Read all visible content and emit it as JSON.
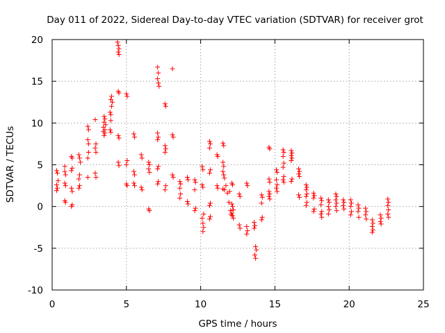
{
  "chart_data": {
    "type": "scatter",
    "title": "Day 011 of 2022, Sidereal Day-to-day VTEC variation (SDTVAR) for receiver grot",
    "xlabel": "GPS time / hours",
    "ylabel": "SDTVAR / TECUs",
    "xlim": [
      0,
      25
    ],
    "ylim": [
      -10,
      20
    ],
    "xticks": [
      0,
      5,
      10,
      15,
      20,
      25
    ],
    "yticks": [
      -10,
      -5,
      0,
      5,
      10,
      15,
      20
    ],
    "grid": true,
    "marker": "plus",
    "color": "#ff0000",
    "series": [
      {
        "name": "SDTVAR",
        "points": [
          [
            0.3,
            4.3
          ],
          [
            0.35,
            4.0
          ],
          [
            0.3,
            2.6
          ],
          [
            0.35,
            2.2
          ],
          [
            0.3,
            1.9
          ],
          [
            0.4,
            3.1
          ],
          [
            0.85,
            4.8
          ],
          [
            0.85,
            4.2
          ],
          [
            0.9,
            3.8
          ],
          [
            0.85,
            2.8
          ],
          [
            0.9,
            2.5
          ],
          [
            0.85,
            0.7
          ],
          [
            0.9,
            0.5
          ],
          [
            1.3,
            6.0
          ],
          [
            1.35,
            5.8
          ],
          [
            1.35,
            4.6
          ],
          [
            1.3,
            4.3
          ],
          [
            1.3,
            2.2
          ],
          [
            1.35,
            1.8
          ],
          [
            1.35,
            0.2
          ],
          [
            1.3,
            0.0
          ],
          [
            1.8,
            6.2
          ],
          [
            1.85,
            5.8
          ],
          [
            1.85,
            3.8
          ],
          [
            1.8,
            3.3
          ],
          [
            1.85,
            2.5
          ],
          [
            1.8,
            2.2
          ],
          [
            1.9,
            5.3
          ],
          [
            2.4,
            9.6
          ],
          [
            2.45,
            9.2
          ],
          [
            2.4,
            8.0
          ],
          [
            2.45,
            7.5
          ],
          [
            2.4,
            5.8
          ],
          [
            2.4,
            3.5
          ],
          [
            2.45,
            6.5
          ],
          [
            2.9,
            10.4
          ],
          [
            2.95,
            7.5
          ],
          [
            2.9,
            7.0
          ],
          [
            2.95,
            6.5
          ],
          [
            2.9,
            4.0
          ],
          [
            2.95,
            3.5
          ],
          [
            3.5,
            10.8
          ],
          [
            3.55,
            10.5
          ],
          [
            3.5,
            10.1
          ],
          [
            3.45,
            9.5
          ],
          [
            3.55,
            9.2
          ],
          [
            3.6,
            9.8
          ],
          [
            3.5,
            8.5
          ],
          [
            3.45,
            9.0
          ],
          [
            3.55,
            8.8
          ],
          [
            3.9,
            11.3
          ],
          [
            3.95,
            11.0
          ],
          [
            3.95,
            10.3
          ],
          [
            3.9,
            9.2
          ],
          [
            3.95,
            8.9
          ],
          [
            4.0,
            12.0
          ],
          [
            4.05,
            12.5
          ],
          [
            4.0,
            13.2
          ],
          [
            3.95,
            12.8
          ],
          [
            4.4,
            19.7
          ],
          [
            4.45,
            19.3
          ],
          [
            4.5,
            18.9
          ],
          [
            4.45,
            18.5
          ],
          [
            4.5,
            18.2
          ],
          [
            4.45,
            13.8
          ],
          [
            4.5,
            13.6
          ],
          [
            4.45,
            8.5
          ],
          [
            4.5,
            8.2
          ],
          [
            4.45,
            5.3
          ],
          [
            4.5,
            4.9
          ],
          [
            5.0,
            13.5
          ],
          [
            5.05,
            13.2
          ],
          [
            5.05,
            5.5
          ],
          [
            5.0,
            5.0
          ],
          [
            5.0,
            2.7
          ],
          [
            5.05,
            2.5
          ],
          [
            5.5,
            8.7
          ],
          [
            5.55,
            8.3
          ],
          [
            5.5,
            4.2
          ],
          [
            5.55,
            3.8
          ],
          [
            5.5,
            2.8
          ],
          [
            5.55,
            2.5
          ],
          [
            6.0,
            6.2
          ],
          [
            6.05,
            5.8
          ],
          [
            6.0,
            2.3
          ],
          [
            6.05,
            2.0
          ],
          [
            6.5,
            5.3
          ],
          [
            6.55,
            5.0
          ],
          [
            6.5,
            4.5
          ],
          [
            6.55,
            4.1
          ],
          [
            6.5,
            -0.3
          ],
          [
            6.55,
            -0.5
          ],
          [
            7.1,
            16.7
          ],
          [
            7.15,
            16.0
          ],
          [
            7.1,
            15.3
          ],
          [
            7.15,
            14.8
          ],
          [
            7.2,
            14.4
          ],
          [
            7.1,
            8.8
          ],
          [
            7.15,
            8.3
          ],
          [
            7.1,
            8.0
          ],
          [
            7.15,
            4.8
          ],
          [
            7.1,
            4.5
          ],
          [
            7.15,
            3.0
          ],
          [
            7.1,
            2.7
          ],
          [
            7.6,
            12.3
          ],
          [
            7.65,
            12.0
          ],
          [
            7.6,
            7.3
          ],
          [
            7.65,
            6.9
          ],
          [
            7.6,
            6.5
          ],
          [
            7.65,
            2.5
          ],
          [
            7.6,
            2.0
          ],
          [
            8.1,
            16.5
          ],
          [
            8.1,
            8.6
          ],
          [
            8.15,
            8.3
          ],
          [
            8.1,
            3.8
          ],
          [
            8.15,
            3.5
          ],
          [
            8.6,
            3.0
          ],
          [
            8.65,
            2.7
          ],
          [
            8.6,
            2.2
          ],
          [
            8.65,
            1.5
          ],
          [
            8.6,
            1.0
          ],
          [
            9.1,
            3.5
          ],
          [
            9.15,
            3.2
          ],
          [
            9.1,
            0.6
          ],
          [
            9.15,
            0.3
          ],
          [
            9.6,
            3.2
          ],
          [
            9.65,
            2.9
          ],
          [
            9.6,
            2.0
          ],
          [
            9.65,
            -0.2
          ],
          [
            9.6,
            -0.5
          ],
          [
            10.1,
            4.8
          ],
          [
            10.15,
            4.4
          ],
          [
            10.1,
            2.6
          ],
          [
            10.15,
            2.3
          ],
          [
            10.2,
            -0.9
          ],
          [
            10.1,
            -1.4
          ],
          [
            10.15,
            -2.0
          ],
          [
            10.2,
            -2.5
          ],
          [
            10.15,
            -3.0
          ],
          [
            10.6,
            7.8
          ],
          [
            10.65,
            7.5
          ],
          [
            10.6,
            7.0
          ],
          [
            10.65,
            4.4
          ],
          [
            10.6,
            4.0
          ],
          [
            10.65,
            0.4
          ],
          [
            10.6,
            0.1
          ],
          [
            10.65,
            -1.2
          ],
          [
            10.6,
            -1.5
          ],
          [
            11.1,
            6.2
          ],
          [
            11.15,
            6.0
          ],
          [
            11.1,
            2.5
          ],
          [
            11.15,
            2.2
          ],
          [
            11.5,
            7.6
          ],
          [
            11.55,
            7.3
          ],
          [
            11.5,
            5.3
          ],
          [
            11.55,
            4.8
          ],
          [
            11.5,
            4.2
          ],
          [
            11.55,
            3.8
          ],
          [
            11.6,
            3.4
          ],
          [
            11.5,
            2.1
          ],
          [
            11.6,
            2.0
          ],
          [
            11.7,
            2.5
          ],
          [
            11.8,
            1.6
          ],
          [
            11.9,
            0.5
          ],
          [
            12.0,
            -0.5
          ],
          [
            12.05,
            -1.0
          ],
          [
            11.95,
            1.8
          ],
          [
            12.1,
            2.8
          ],
          [
            12.15,
            2.6
          ],
          [
            12.1,
            0.3
          ],
          [
            12.15,
            0.0
          ],
          [
            12.2,
            -0.4
          ],
          [
            12.1,
            -0.8
          ],
          [
            12.15,
            -1.1
          ],
          [
            12.2,
            -1.4
          ],
          [
            12.6,
            1.5
          ],
          [
            12.65,
            1.2
          ],
          [
            12.6,
            -2.2
          ],
          [
            12.65,
            -2.6
          ],
          [
            13.1,
            2.8
          ],
          [
            13.15,
            2.5
          ],
          [
            13.1,
            -2.4
          ],
          [
            13.15,
            -2.9
          ],
          [
            13.1,
            -3.3
          ],
          [
            13.6,
            -1.9
          ],
          [
            13.65,
            -2.3
          ],
          [
            13.6,
            -2.6
          ],
          [
            13.7,
            -4.8
          ],
          [
            13.75,
            -5.2
          ],
          [
            13.65,
            -5.8
          ],
          [
            13.7,
            -6.2
          ],
          [
            14.1,
            1.4
          ],
          [
            14.15,
            1.1
          ],
          [
            14.1,
            0.4
          ],
          [
            14.15,
            -1.3
          ],
          [
            14.1,
            -1.6
          ],
          [
            14.6,
            7.1
          ],
          [
            14.65,
            6.9
          ],
          [
            14.6,
            3.3
          ],
          [
            14.65,
            2.9
          ],
          [
            14.6,
            1.8
          ],
          [
            14.65,
            1.5
          ],
          [
            14.6,
            1.2
          ],
          [
            14.65,
            0.9
          ],
          [
            15.1,
            4.4
          ],
          [
            15.15,
            4.1
          ],
          [
            15.1,
            3.2
          ],
          [
            15.15,
            2.6
          ],
          [
            15.1,
            2.2
          ],
          [
            15.15,
            1.8
          ],
          [
            15.55,
            6.8
          ],
          [
            15.6,
            6.5
          ],
          [
            15.55,
            6.0
          ],
          [
            15.6,
            5.2
          ],
          [
            15.55,
            4.7
          ],
          [
            15.6,
            3.6
          ],
          [
            15.55,
            3.2
          ],
          [
            15.6,
            2.9
          ],
          [
            16.1,
            6.7
          ],
          [
            16.15,
            6.4
          ],
          [
            16.1,
            6.1
          ],
          [
            16.15,
            5.8
          ],
          [
            16.1,
            5.5
          ],
          [
            16.15,
            3.3
          ],
          [
            16.1,
            3.0
          ],
          [
            16.6,
            4.5
          ],
          [
            16.65,
            4.2
          ],
          [
            16.6,
            3.9
          ],
          [
            16.65,
            3.6
          ],
          [
            16.6,
            1.4
          ],
          [
            16.65,
            1.1
          ],
          [
            17.1,
            2.6
          ],
          [
            17.15,
            2.3
          ],
          [
            17.1,
            2.0
          ],
          [
            17.15,
            1.5
          ],
          [
            17.1,
            1.2
          ],
          [
            17.15,
            0.5
          ],
          [
            17.1,
            0.1
          ],
          [
            17.6,
            1.6
          ],
          [
            17.65,
            1.3
          ],
          [
            17.6,
            1.0
          ],
          [
            17.65,
            -0.3
          ],
          [
            17.6,
            -0.6
          ],
          [
            18.1,
            1.0
          ],
          [
            18.15,
            0.7
          ],
          [
            18.1,
            0.2
          ],
          [
            18.15,
            -0.6
          ],
          [
            18.1,
            -0.9
          ],
          [
            18.15,
            -1.3
          ],
          [
            18.6,
            0.8
          ],
          [
            18.65,
            0.5
          ],
          [
            18.6,
            0.0
          ],
          [
            18.65,
            -0.4
          ],
          [
            18.6,
            -0.9
          ],
          [
            19.1,
            1.5
          ],
          [
            19.15,
            1.2
          ],
          [
            19.1,
            0.8
          ],
          [
            19.15,
            0.4
          ],
          [
            19.1,
            0.0
          ],
          [
            19.15,
            -0.5
          ],
          [
            19.6,
            0.8
          ],
          [
            19.65,
            0.5
          ],
          [
            19.6,
            0.1
          ],
          [
            19.65,
            -0.3
          ],
          [
            20.1,
            0.8
          ],
          [
            20.15,
            0.4
          ],
          [
            20.1,
            0.0
          ],
          [
            20.15,
            -0.6
          ],
          [
            20.1,
            -1.0
          ],
          [
            20.6,
            0.2
          ],
          [
            20.65,
            -0.2
          ],
          [
            20.6,
            -0.6
          ],
          [
            20.65,
            -1.3
          ],
          [
            21.1,
            -0.2
          ],
          [
            21.15,
            -0.6
          ],
          [
            21.1,
            -1.0
          ],
          [
            21.15,
            -1.5
          ],
          [
            21.55,
            -1.6
          ],
          [
            21.6,
            -2.0
          ],
          [
            21.55,
            -2.4
          ],
          [
            21.6,
            -2.8
          ],
          [
            21.55,
            -3.1
          ],
          [
            22.1,
            -1.0
          ],
          [
            22.15,
            -1.4
          ],
          [
            22.1,
            -1.8
          ],
          [
            22.15,
            -2.1
          ],
          [
            22.6,
            0.9
          ],
          [
            22.65,
            0.5
          ],
          [
            22.6,
            0.1
          ],
          [
            22.65,
            -0.4
          ],
          [
            22.6,
            -0.9
          ],
          [
            22.65,
            -1.3
          ]
        ]
      }
    ]
  }
}
